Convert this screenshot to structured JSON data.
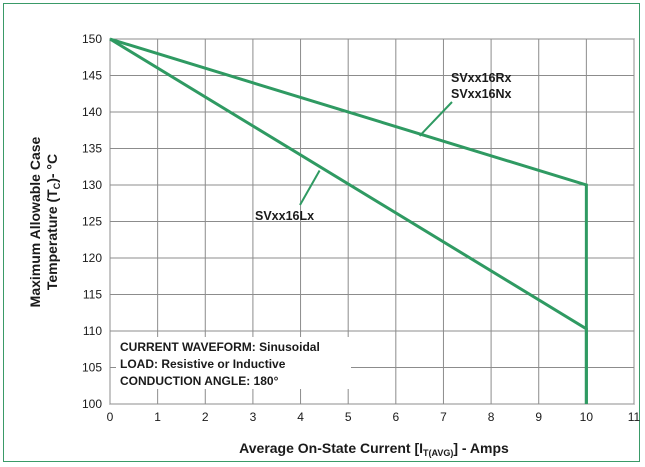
{
  "chart_data": {
    "type": "line",
    "xlabel": "Average On-State Current [I",
    "xlabel_sub": "T(AVG)",
    "xlabel_tail": "] - Amps",
    "ylabel_line1": "Maximum Allowable Case",
    "ylabel_line2": "Temperature (T",
    "ylabel_sub": "C",
    "ylabel_tail": ")- °C",
    "xlim": [
      0,
      11
    ],
    "ylim": [
      100,
      150
    ],
    "xticks": [
      0,
      1,
      2,
      3,
      4,
      5,
      6,
      7,
      8,
      9,
      10,
      11
    ],
    "yticks": [
      100,
      105,
      110,
      115,
      120,
      125,
      130,
      135,
      140,
      145,
      150
    ],
    "grid": true,
    "colors": {
      "series": "#2f9a62",
      "grid": "#8c8c8c",
      "border": "#3a9a68"
    },
    "series": [
      {
        "name": "SVxx16Rx / SVxx16Nx",
        "x": [
          0,
          10,
          10
        ],
        "y": [
          150,
          130,
          100
        ]
      },
      {
        "name": "SVxx16Lx",
        "x": [
          0,
          10,
          10
        ],
        "y": [
          150,
          110.3,
          100
        ]
      }
    ],
    "annotations": {
      "rx_line1": "SVxx16Rx",
      "rx_line2": "SVxx16Nx",
      "lx": "SVxx16Lx"
    },
    "notes": [
      "CURRENT WAVEFORM: Sinusoidal",
      "LOAD: Resistive or Inductive",
      "CONDUCTION ANGLE: 180°"
    ]
  }
}
